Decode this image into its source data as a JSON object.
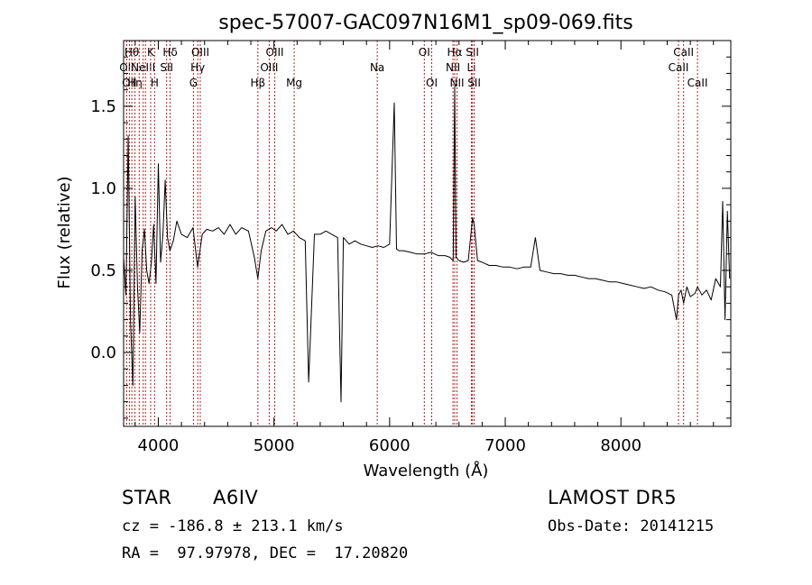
{
  "chart_data": {
    "type": "line",
    "title": "spec-57007-GAC097N16M1_sp09-069.fits",
    "xlabel": "Wavelength (Å)",
    "ylabel": "Flux (relative)",
    "xlim": [
      3700,
      8950
    ],
    "ylim": [
      -0.45,
      1.9
    ],
    "xticks": [
      4000,
      5000,
      6000,
      7000,
      8000
    ],
    "xtick_labels": [
      "4000",
      "5000",
      "6000",
      "7000",
      "8000"
    ],
    "yticks": [
      0.0,
      0.5,
      1.0,
      1.5
    ],
    "ytick_labels": [
      "0.0",
      "0.5",
      "1.0",
      "1.5"
    ],
    "grid": false,
    "line_color": "#000000",
    "marker_color": "#b22222",
    "series": [
      {
        "x": [
          3700,
          3720,
          3740,
          3760,
          3780,
          3800,
          3820,
          3840,
          3860,
          3880,
          3900,
          3920,
          3940,
          3960,
          3980,
          4000,
          4020,
          4040,
          4060,
          4080,
          4100,
          4130,
          4160,
          4200,
          4250,
          4300,
          4340,
          4380,
          4420,
          4470,
          4520,
          4570,
          4620,
          4670,
          4720,
          4780,
          4830,
          4861,
          4890,
          4930,
          4980,
          5020,
          5070,
          5120,
          5170,
          5220,
          5270,
          5300,
          5350,
          5400,
          5450,
          5500,
          5550,
          5580,
          5600,
          5650,
          5700,
          5750,
          5800,
          5850,
          5900,
          5950,
          6000,
          6040,
          6060,
          6080,
          6120,
          6180,
          6240,
          6300,
          6360,
          6420,
          6480,
          6520,
          6550,
          6563,
          6575,
          6600,
          6640,
          6680,
          6717,
          6731,
          6760,
          6800,
          6860,
          6920,
          6980,
          7040,
          7100,
          7160,
          7220,
          7260,
          7300,
          7360,
          7420,
          7480,
          7540,
          7600,
          7660,
          7720,
          7780,
          7840,
          7900,
          7960,
          8020,
          8080,
          8140,
          8200,
          8260,
          8320,
          8380,
          8440,
          8480,
          8498,
          8520,
          8542,
          8570,
          8600,
          8640,
          8662,
          8700,
          8740,
          8780,
          8820,
          8860,
          8880,
          8900,
          8920,
          8940
        ],
        "y": [
          0.58,
          0.35,
          1.32,
          0.18,
          -0.2,
          0.95,
          0.4,
          0.12,
          0.62,
          0.75,
          0.5,
          0.42,
          0.55,
          0.78,
          0.42,
          1.15,
          0.55,
          0.72,
          1.05,
          0.7,
          0.62,
          0.68,
          0.8,
          0.72,
          0.7,
          0.76,
          0.52,
          0.72,
          0.75,
          0.74,
          0.76,
          0.72,
          0.78,
          0.72,
          0.76,
          0.74,
          0.58,
          0.45,
          0.62,
          0.74,
          0.76,
          0.74,
          0.78,
          0.72,
          0.74,
          0.7,
          0.68,
          -0.18,
          0.72,
          0.72,
          0.74,
          0.72,
          0.7,
          -0.3,
          0.7,
          0.66,
          0.68,
          0.66,
          0.65,
          0.64,
          0.65,
          0.64,
          0.66,
          1.52,
          0.63,
          0.62,
          0.62,
          0.61,
          0.6,
          0.6,
          0.61,
          0.59,
          0.59,
          0.58,
          0.56,
          1.62,
          0.58,
          0.56,
          0.55,
          0.56,
          0.82,
          0.78,
          0.56,
          0.55,
          0.53,
          0.53,
          0.52,
          0.52,
          0.51,
          0.52,
          0.52,
          0.7,
          0.5,
          0.49,
          0.48,
          0.48,
          0.47,
          0.47,
          0.46,
          0.45,
          0.45,
          0.44,
          0.43,
          0.43,
          0.42,
          0.41,
          0.4,
          0.39,
          0.4,
          0.38,
          0.37,
          0.35,
          0.2,
          0.35,
          0.38,
          0.3,
          0.4,
          0.34,
          0.36,
          0.4,
          0.35,
          0.38,
          0.32,
          0.45,
          0.4,
          0.92,
          0.2,
          0.86,
          0.45
        ]
      }
    ],
    "line_markers": [
      {
        "wl": 3727,
        "label": "OII",
        "row": 1
      },
      {
        "wl": 3750,
        "label": "OII",
        "row": 2
      },
      {
        "wl": 3771,
        "label": "Hθ",
        "row": 0
      },
      {
        "wl": 3798,
        "label": "Hη",
        "row": 2
      },
      {
        "wl": 3835,
        "label": "",
        "row": -1
      },
      {
        "wl": 3869,
        "label": "NeIII",
        "row": 1
      },
      {
        "wl": 3889,
        "label": "",
        "row": -1
      },
      {
        "wl": 3934,
        "label": "K",
        "row": 0
      },
      {
        "wl": 3968,
        "label": "H",
        "row": 2
      },
      {
        "wl": 4072,
        "label": "SII",
        "row": 1
      },
      {
        "wl": 4102,
        "label": "Hδ",
        "row": 0
      },
      {
        "wl": 4304,
        "label": "G",
        "row": 2
      },
      {
        "wl": 4341,
        "label": "Hγ",
        "row": 1
      },
      {
        "wl": 4363,
        "label": "OIII",
        "row": 0
      },
      {
        "wl": 4861,
        "label": "Hβ",
        "row": 2
      },
      {
        "wl": 4959,
        "label": "OIII",
        "row": 1
      },
      {
        "wl": 5007,
        "label": "OIII",
        "row": 0
      },
      {
        "wl": 5175,
        "label": "Mg",
        "row": 2
      },
      {
        "wl": 5893,
        "label": "Na",
        "row": 1
      },
      {
        "wl": 6300,
        "label": "OI",
        "row": 0
      },
      {
        "wl": 6364,
        "label": "OI",
        "row": 2
      },
      {
        "wl": 6548,
        "label": "NII",
        "row": 1
      },
      {
        "wl": 6563,
        "label": "Hα",
        "row": 0
      },
      {
        "wl": 6583,
        "label": "NII",
        "row": 2
      },
      {
        "wl": 6707,
        "label": "Li",
        "row": 1
      },
      {
        "wl": 6716,
        "label": "SII",
        "row": 0
      },
      {
        "wl": 6731,
        "label": "SII",
        "row": 2
      },
      {
        "wl": 8498,
        "label": "CaII",
        "row": 1
      },
      {
        "wl": 8542,
        "label": "CaII",
        "row": 0
      },
      {
        "wl": 8662,
        "label": "CaII",
        "row": 2
      }
    ]
  },
  "info": {
    "object_class": "STAR",
    "subclass": "A6IV",
    "survey": "LAMOST DR5",
    "redshift": "cz = -186.8 ± 213.1 km/s",
    "obs_date": "Obs-Date: 20141215",
    "coords": "RA =  97.97978, DEC =  17.20820"
  }
}
